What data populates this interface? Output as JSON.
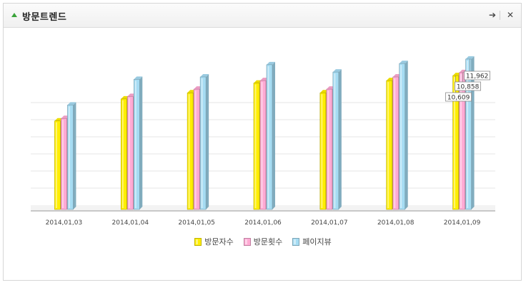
{
  "panel": {
    "title": "방문트렌드",
    "actions": {
      "go_label": "➔",
      "close_label": "✕"
    }
  },
  "chart_data": {
    "type": "bar",
    "title": "",
    "xlabel": "",
    "ylabel": "",
    "grid": true,
    "legend": "bottom",
    "categories": [
      "2014,01,03",
      "2014,01,04",
      "2014,01,05",
      "2014,01,06",
      "2014,01,07",
      "2014,01,08",
      "2014,01,09"
    ],
    "ylim": [
      0,
      14000
    ],
    "series": [
      {
        "name": "방문자수",
        "color": "#ffee00",
        "values": [
          6900,
          8700,
          9200,
          10000,
          9200,
          10200,
          10609
        ]
      },
      {
        "name": "방문횟수",
        "color": "#ffaad4",
        "values": [
          7100,
          8900,
          9500,
          10200,
          9500,
          10500,
          10858
        ]
      },
      {
        "name": "페이지뷰",
        "color": "#a6dcf3",
        "values": [
          8200,
          10300,
          10500,
          11500,
          10900,
          11600,
          11962
        ]
      }
    ],
    "data_labels": [
      {
        "series": 0,
        "category": 6,
        "text": "10,609"
      },
      {
        "series": 1,
        "category": 6,
        "text": "10,858"
      },
      {
        "series": 2,
        "category": 6,
        "text": "11,962"
      }
    ]
  }
}
